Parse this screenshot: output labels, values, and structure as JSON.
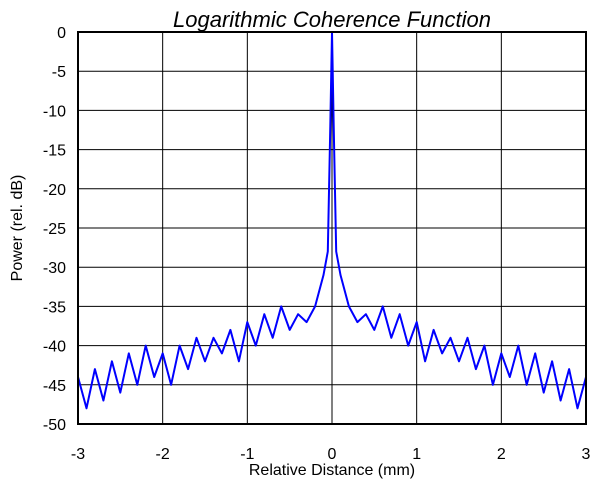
{
  "chart_data": {
    "type": "line",
    "title": "Logarithmic Coherence Function",
    "xlabel": "Relative Distance (mm)",
    "ylabel": "Power (rel. dB)",
    "xlim": [
      -3,
      3
    ],
    "ylim": [
      -50,
      0
    ],
    "xticks": [
      "-3",
      "-2",
      "-1",
      "0",
      "1",
      "2",
      "3"
    ],
    "yticks": [
      "0",
      "-5",
      "-10",
      "-15",
      "-20",
      "-25",
      "-30",
      "-35",
      "-40",
      "-45",
      "-50"
    ],
    "grid": true,
    "legend": "none",
    "series": [
      {
        "color": "#0000ff",
        "x": [
          -3.0,
          -2.9,
          -2.8,
          -2.7,
          -2.6,
          -2.5,
          -2.4,
          -2.3,
          -2.2,
          -2.1,
          -2.0,
          -1.9,
          -1.8,
          -1.7,
          -1.6,
          -1.5,
          -1.4,
          -1.3,
          -1.2,
          -1.1,
          -1.0,
          -0.9,
          -0.8,
          -0.7,
          -0.6,
          -0.5,
          -0.4,
          -0.3,
          -0.2,
          -0.1,
          -0.05,
          -0.02,
          0.0,
          0.02,
          0.05,
          0.1,
          0.2,
          0.3,
          0.4,
          0.5,
          0.6,
          0.7,
          0.8,
          0.9,
          1.0,
          1.1,
          1.2,
          1.3,
          1.4,
          1.5,
          1.6,
          1.7,
          1.8,
          1.9,
          2.0,
          2.1,
          2.2,
          2.3,
          2.4,
          2.5,
          2.6,
          2.7,
          2.8,
          2.9,
          3.0
        ],
        "y": [
          -44,
          -48,
          -43,
          -47,
          -42,
          -46,
          -41,
          -45,
          -40,
          -44,
          -41,
          -45,
          -40,
          -43,
          -39,
          -42,
          -39,
          -41,
          -38,
          -42,
          -37,
          -40,
          -36,
          -39,
          -35,
          -38,
          -36,
          -37,
          -35,
          -31,
          -28,
          -12,
          0,
          -12,
          -28,
          -31,
          -35,
          -37,
          -36,
          -38,
          -35,
          -39,
          -36,
          -40,
          -37,
          -42,
          -38,
          -41,
          -39,
          -42,
          -39,
          -43,
          -40,
          -45,
          -41,
          -44,
          -40,
          -45,
          -41,
          -46,
          -42,
          -47,
          -43,
          -48,
          -44
        ]
      }
    ]
  }
}
